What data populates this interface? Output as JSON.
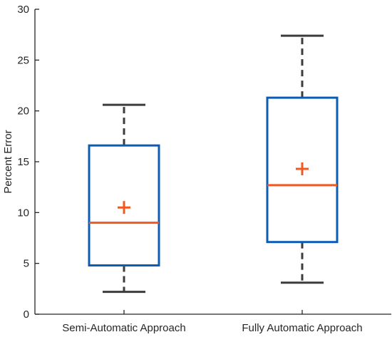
{
  "chart_data": {
    "type": "box",
    "title": "",
    "xlabel": "",
    "ylabel": "Percent Error",
    "ylim": [
      0,
      30
    ],
    "yticks": [
      0,
      5,
      10,
      15,
      20,
      25,
      30
    ],
    "grid": false,
    "categories": [
      "Semi-Automatic Approach",
      "Fully Automatic Approach"
    ],
    "boxes": [
      {
        "category": "Semi-Automatic Approach",
        "whisker_low": 2.2,
        "q1": 4.8,
        "median": 9.0,
        "q3": 16.6,
        "whisker_high": 20.6,
        "mean": 10.5
      },
      {
        "category": "Fully Automatic Approach",
        "whisker_low": 3.1,
        "q1": 7.1,
        "median": 12.7,
        "q3": 21.3,
        "whisker_high": 27.4,
        "mean": 14.3
      }
    ],
    "colors": {
      "box": "#0b5cb5",
      "median": "#f05a22",
      "mean": "#f05a22",
      "whisker": "#3c3c3c",
      "axis": "#262626"
    }
  }
}
